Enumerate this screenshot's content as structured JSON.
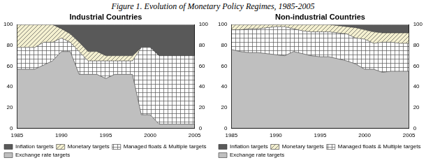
{
  "title": "Figure 1. Evolution of Monetary Policy Regimes, 1985-2005",
  "chart_data": [
    {
      "type": "area",
      "title": "Industrial Countries",
      "stacked": true,
      "grid": false,
      "legend": "bottom",
      "x": [
        1985,
        1986,
        1987,
        1988,
        1989,
        1990,
        1991,
        1992,
        1993,
        1994,
        1995,
        1996,
        1997,
        1998,
        1999,
        2000,
        2001,
        2002,
        2003,
        2004,
        2005
      ],
      "xlim": [
        1985,
        2005
      ],
      "xticks": [
        1985,
        1990,
        1995,
        2000,
        2005
      ],
      "ylim": [
        0,
        100
      ],
      "yticks": [
        0,
        20,
        40,
        60,
        80,
        100
      ],
      "y2lim": [
        0,
        100
      ],
      "y2ticks": [
        0,
        20,
        40,
        60,
        80,
        100
      ],
      "series": [
        {
          "name": "Exchange rate targets",
          "color": "#bfbfbf",
          "values": [
            57,
            57,
            57,
            61,
            65,
            74,
            74,
            52,
            52,
            52,
            48,
            52,
            52,
            52,
            13,
            13,
            4,
            4,
            4,
            4,
            4
          ]
        },
        {
          "name": "Managed floats & Multiple targets",
          "color": "#ffffff",
          "values": [
            21,
            21,
            21,
            22,
            18,
            13,
            9,
            22,
            13,
            13,
            17,
            13,
            13,
            13,
            65,
            65,
            66,
            66,
            66,
            66,
            66
          ]
        },
        {
          "name": "Monetary targets",
          "color": "#f4f0d0",
          "values": [
            22,
            22,
            22,
            17,
            17,
            9,
            8,
            9,
            9,
            9,
            5,
            5,
            5,
            5,
            0,
            0,
            0,
            0,
            0,
            0,
            0
          ]
        },
        {
          "name": "Inflation targets",
          "color": "#595959",
          "values": [
            0,
            0,
            0,
            0,
            0,
            4,
            9,
            17,
            26,
            26,
            30,
            30,
            30,
            30,
            22,
            22,
            30,
            30,
            30,
            30,
            30
          ]
        }
      ]
    },
    {
      "type": "area",
      "title": "Non-industrial Countries",
      "stacked": true,
      "grid": false,
      "legend": "bottom",
      "x": [
        1985,
        1986,
        1987,
        1988,
        1989,
        1990,
        1991,
        1992,
        1993,
        1994,
        1995,
        1996,
        1997,
        1998,
        1999,
        2000,
        2001,
        2002,
        2003,
        2004,
        2005
      ],
      "xlim": [
        1985,
        2005
      ],
      "xticks": [
        1985,
        1990,
        1995,
        2000,
        2005
      ],
      "ylim": [
        0,
        100
      ],
      "yticks": [
        0,
        20,
        40,
        60,
        80,
        100
      ],
      "y2lim": [
        0,
        100
      ],
      "y2ticks": [
        0,
        20,
        40,
        60,
        80,
        100
      ],
      "series": [
        {
          "name": "Exchange rate targets",
          "color": "#bfbfbf",
          "values": [
            76,
            74,
            73,
            73,
            72,
            71,
            70,
            74,
            72,
            70,
            69,
            69,
            67,
            65,
            62,
            57,
            57,
            54,
            55,
            55,
            55
          ]
        },
        {
          "name": "Managed floats & Multiple targets",
          "color": "#ffffff",
          "values": [
            19,
            21,
            23,
            23,
            25,
            27,
            28,
            22,
            22,
            23,
            24,
            24,
            25,
            26,
            25,
            29,
            25,
            29,
            28,
            27,
            27
          ]
        },
        {
          "name": "Monetary targets",
          "color": "#f4f0d0",
          "values": [
            5,
            5,
            4,
            4,
            3,
            2,
            2,
            4,
            6,
            7,
            7,
            7,
            7,
            7,
            10,
            9,
            11,
            9,
            9,
            10,
            10
          ]
        },
        {
          "name": "Inflation targets",
          "color": "#595959",
          "values": [
            0,
            0,
            0,
            0,
            0,
            0,
            0,
            0,
            0,
            0,
            0,
            0,
            1,
            2,
            3,
            5,
            7,
            8,
            8,
            8,
            8
          ]
        }
      ]
    }
  ]
}
